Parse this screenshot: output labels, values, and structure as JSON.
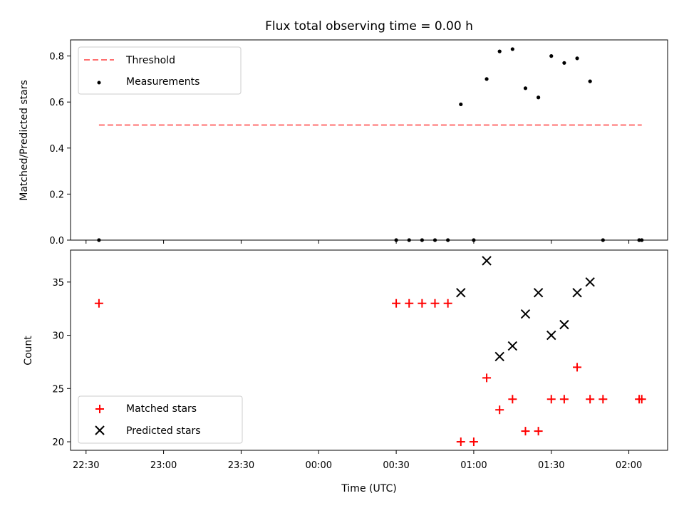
{
  "chart_data": [
    {
      "type": "scatter",
      "title": "Flux total observing time = 0.00 h",
      "ylabel": "Matched/Predicted stars",
      "xlabel": "",
      "ylim": [
        0,
        0.87
      ],
      "yticks": [
        0.0,
        0.2,
        0.4,
        0.6,
        0.8
      ],
      "ytick_labels": [
        "0.0",
        "0.2",
        "0.4",
        "0.6",
        "0.8"
      ],
      "threshold": {
        "name": "Threshold",
        "value": 0.5,
        "x_start": "22:35",
        "x_end": "02:05",
        "color": "#ff6f6f"
      },
      "legend": {
        "position": "top-left",
        "entries": [
          "Threshold",
          "Measurements"
        ]
      },
      "series": [
        {
          "name": "Measurements",
          "color": "#000000",
          "marker": "dot",
          "points": [
            {
              "x": "22:35",
              "y": 0.0
            },
            {
              "x": "00:30",
              "y": 0.0
            },
            {
              "x": "00:35",
              "y": 0.0
            },
            {
              "x": "00:40",
              "y": 0.0
            },
            {
              "x": "00:45",
              "y": 0.0
            },
            {
              "x": "00:50",
              "y": 0.0
            },
            {
              "x": "00:55",
              "y": 0.59
            },
            {
              "x": "01:00",
              "y": 0.0
            },
            {
              "x": "01:05",
              "y": 0.7
            },
            {
              "x": "01:10",
              "y": 0.82
            },
            {
              "x": "01:15",
              "y": 0.83
            },
            {
              "x": "01:20",
              "y": 0.66
            },
            {
              "x": "01:25",
              "y": 0.62
            },
            {
              "x": "01:30",
              "y": 0.8
            },
            {
              "x": "01:35",
              "y": 0.77
            },
            {
              "x": "01:40",
              "y": 0.79
            },
            {
              "x": "01:45",
              "y": 0.69
            },
            {
              "x": "01:50",
              "y": 0.0
            },
            {
              "x": "02:04",
              "y": 0.0
            },
            {
              "x": "02:05",
              "y": 0.0
            }
          ]
        }
      ]
    },
    {
      "type": "scatter",
      "title": "",
      "ylabel": "Count",
      "xlabel": "Time (UTC)",
      "ylim": [
        19.2,
        38.0
      ],
      "yticks": [
        20,
        25,
        30,
        35
      ],
      "ytick_labels": [
        "20",
        "25",
        "30",
        "35"
      ],
      "legend": {
        "position": "bottom-left",
        "entries": [
          "Matched stars",
          "Predicted stars"
        ]
      },
      "series": [
        {
          "name": "Matched stars",
          "color": "#ff0000",
          "marker": "plus",
          "points": [
            {
              "x": "22:35",
              "y": 33
            },
            {
              "x": "00:30",
              "y": 33
            },
            {
              "x": "00:35",
              "y": 33
            },
            {
              "x": "00:40",
              "y": 33
            },
            {
              "x": "00:45",
              "y": 33
            },
            {
              "x": "00:50",
              "y": 33
            },
            {
              "x": "00:55",
              "y": 20
            },
            {
              "x": "01:00",
              "y": 20
            },
            {
              "x": "01:05",
              "y": 26
            },
            {
              "x": "01:10",
              "y": 23
            },
            {
              "x": "01:15",
              "y": 24
            },
            {
              "x": "01:20",
              "y": 21
            },
            {
              "x": "01:25",
              "y": 21
            },
            {
              "x": "01:30",
              "y": 24
            },
            {
              "x": "01:35",
              "y": 24
            },
            {
              "x": "01:40",
              "y": 27
            },
            {
              "x": "01:45",
              "y": 24
            },
            {
              "x": "01:50",
              "y": 24
            },
            {
              "x": "02:04",
              "y": 24
            },
            {
              "x": "02:05",
              "y": 24
            }
          ]
        },
        {
          "name": "Predicted stars",
          "color": "#000000",
          "marker": "x",
          "points": [
            {
              "x": "00:55",
              "y": 34
            },
            {
              "x": "01:05",
              "y": 37
            },
            {
              "x": "01:10",
              "y": 28
            },
            {
              "x": "01:15",
              "y": 29
            },
            {
              "x": "01:20",
              "y": 32
            },
            {
              "x": "01:25",
              "y": 34
            },
            {
              "x": "01:30",
              "y": 30
            },
            {
              "x": "01:35",
              "y": 31
            },
            {
              "x": "01:40",
              "y": 34
            },
            {
              "x": "01:45",
              "y": 35
            }
          ]
        }
      ]
    }
  ],
  "x_axis": {
    "range": [
      "22:24",
      "02:15"
    ],
    "ticks": [
      "22:30",
      "23:00",
      "23:30",
      "00:00",
      "00:30",
      "01:00",
      "01:30",
      "02:00"
    ]
  }
}
